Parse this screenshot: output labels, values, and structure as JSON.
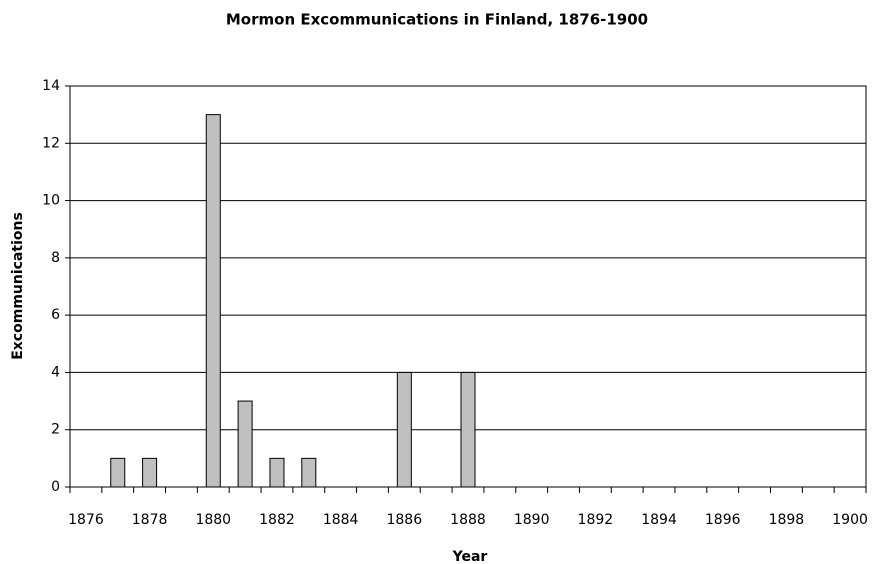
{
  "chart_data": {
    "type": "bar",
    "title": "Mormon Excommunications in Finland, 1876-1900",
    "x_label": "Year",
    "y_label": "Excommunications",
    "categories": [
      "1876",
      null,
      "1878",
      null,
      "1880",
      null,
      "1882",
      null,
      "1884",
      null,
      "1886",
      null,
      "1888",
      null,
      "1890",
      null,
      "1892",
      null,
      "1894",
      null,
      "1896",
      null,
      "1898",
      null,
      "1900"
    ],
    "values": [
      0,
      1,
      1,
      0,
      13,
      3,
      1,
      1,
      0,
      0,
      4,
      0,
      4,
      0,
      0,
      0,
      0,
      0,
      0,
      0,
      0,
      0,
      0,
      0,
      0
    ],
    "color": "#c0c0c0",
    "ylim": [
      0,
      14
    ],
    "yticks": [
      0,
      2,
      4,
      6,
      8,
      10,
      12,
      14
    ],
    "grid": true
  }
}
